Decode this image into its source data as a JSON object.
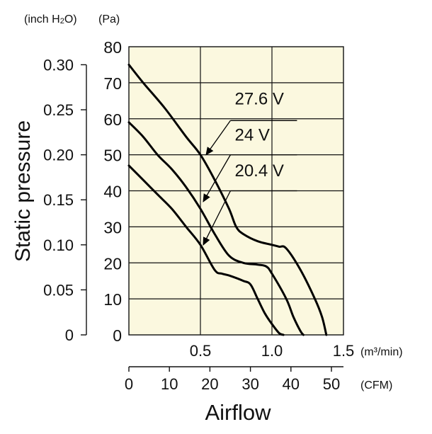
{
  "chart_data": {
    "type": "line",
    "ylabel": "Static pressure",
    "xlabel": "Airflow",
    "y_primary": {
      "unit": "(Pa)",
      "range": [
        0,
        80
      ],
      "ticks": [
        0,
        10,
        20,
        30,
        40,
        50,
        60,
        70,
        80
      ]
    },
    "y_secondary": {
      "unit": "(inch H2O)",
      "unit_parts": [
        "(inch H",
        "2",
        "O)"
      ],
      "range": [
        0,
        0.32
      ],
      "ticks": [
        0,
        0.05,
        0.1,
        0.15,
        0.2,
        0.25,
        0.3
      ],
      "tick_labels": [
        "0",
        "0.05",
        "0.10",
        "0.15",
        "0.20",
        "0.25",
        "0.30"
      ]
    },
    "x_primary": {
      "unit": "(m³/min)",
      "range": [
        0,
        1.5
      ],
      "ticks": [
        0.5,
        1.0,
        1.5
      ],
      "tick_labels": [
        "0.5",
        "1.0",
        "1.5"
      ]
    },
    "x_secondary": {
      "unit": "(CFM)",
      "ticks": [
        0,
        10,
        20,
        30,
        40,
        50
      ],
      "tick_labels": [
        "0",
        "10",
        "20",
        "30",
        "40",
        "50"
      ]
    },
    "series": [
      {
        "name": "27.6 V",
        "x": [
          0,
          0.1,
          0.25,
          0.4,
          0.5,
          0.6,
          0.7,
          0.75,
          0.8,
          0.9,
          1.0,
          1.05,
          1.1,
          1.2,
          1.3,
          1.35,
          1.38
        ],
        "y": [
          75,
          70,
          63,
          55,
          50,
          43,
          35,
          30,
          28,
          26,
          25,
          24.5,
          24,
          18,
          10,
          5,
          0
        ]
      },
      {
        "name": "24 V",
        "x": [
          0,
          0.1,
          0.2,
          0.3,
          0.4,
          0.5,
          0.6,
          0.7,
          0.8,
          0.9,
          0.96,
          1.0,
          1.1,
          1.15,
          1.2,
          1.22
        ],
        "y": [
          59,
          55,
          50,
          46,
          41,
          35,
          28,
          22,
          20,
          19.5,
          19,
          17,
          10,
          5,
          1,
          0
        ]
      },
      {
        "name": "20.4 V",
        "x": [
          0,
          0.1,
          0.2,
          0.3,
          0.4,
          0.5,
          0.6,
          0.65,
          0.7,
          0.8,
          0.85,
          0.9,
          0.95,
          1.0,
          1.05,
          1.08
        ],
        "y": [
          47,
          43,
          39,
          35,
          30,
          25,
          18,
          17,
          16.5,
          15,
          14,
          10,
          6,
          3,
          0.5,
          0
        ]
      }
    ],
    "annotations": [
      {
        "series": "27.6 V",
        "label_at": {
          "x": 0.74,
          "y": 64
        },
        "arrow_from": {
          "x": 0.71,
          "y": 59.5
        },
        "arrow_to": {
          "x": 0.54,
          "y": 50
        }
      },
      {
        "series": "24 V",
        "label_at": {
          "x": 0.74,
          "y": 54
        },
        "arrow_from": {
          "x": 0.71,
          "y": 50
        },
        "arrow_to": {
          "x": 0.52,
          "y": 37
        }
      },
      {
        "series": "20.4 V",
        "label_at": {
          "x": 0.74,
          "y": 44
        },
        "arrow_from": {
          "x": 0.71,
          "y": 40
        },
        "arrow_to": {
          "x": 0.52,
          "y": 25
        }
      }
    ],
    "grid": true,
    "plot_background": "#fbf8df"
  }
}
